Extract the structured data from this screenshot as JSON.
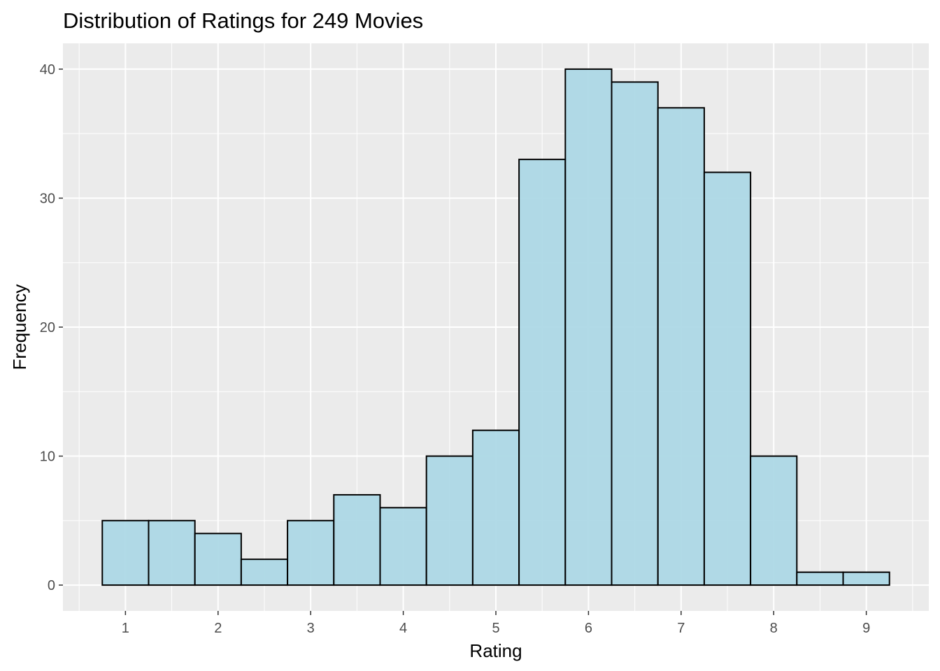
{
  "chart_data": {
    "type": "bar",
    "title": "Distribution of Ratings for 249 Movies",
    "xlabel": "Rating",
    "ylabel": "Frequency",
    "bin_width": 0.5,
    "bins": [
      {
        "center": 1.0,
        "count": 5
      },
      {
        "center": 1.5,
        "count": 5
      },
      {
        "center": 2.0,
        "count": 4
      },
      {
        "center": 2.5,
        "count": 2
      },
      {
        "center": 3.0,
        "count": 5
      },
      {
        "center": 3.5,
        "count": 7
      },
      {
        "center": 4.0,
        "count": 6
      },
      {
        "center": 4.5,
        "count": 10
      },
      {
        "center": 5.0,
        "count": 12
      },
      {
        "center": 5.5,
        "count": 33
      },
      {
        "center": 6.0,
        "count": 40
      },
      {
        "center": 6.5,
        "count": 39
      },
      {
        "center": 7.0,
        "count": 37
      },
      {
        "center": 7.5,
        "count": 32
      },
      {
        "center": 8.0,
        "count": 10
      },
      {
        "center": 8.5,
        "count": 1
      },
      {
        "center": 9.0,
        "count": 1
      }
    ],
    "xlim": [
      0.325,
      9.675
    ],
    "ylim": [
      -2,
      42
    ],
    "x_ticks": [
      1,
      2,
      3,
      4,
      5,
      6,
      7,
      8,
      9
    ],
    "y_ticks": [
      0,
      10,
      20,
      30,
      40
    ],
    "grid": true,
    "colors": {
      "panel_background": "#EBEBEB",
      "grid_major": "#FFFFFF",
      "bar_fill": "#ADD8E6",
      "bar_outline": "#000000",
      "tick_text": "#4D4D4D"
    }
  }
}
